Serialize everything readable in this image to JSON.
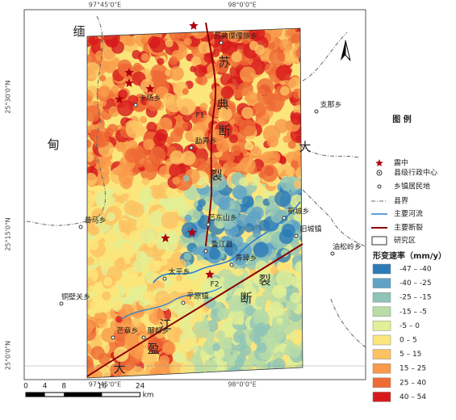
{
  "coordinates": {
    "top": [
      "97°45'0\"E",
      "98°0'0\"E"
    ],
    "bottom": [
      "97°45'0\"E",
      "98°0'0\"E"
    ],
    "left": [
      "25°30'0\"N",
      "25°15'0\"N",
      "25°0'0\"N"
    ]
  },
  "regions": [
    "缅",
    "甸",
    "苏",
    "典",
    "断",
    "裂",
    "大",
    "裂",
    "断",
    "江",
    "盈",
    "大"
  ],
  "faults": [
    "F1",
    "F2"
  ],
  "places": [
    "苏典傈僳族乡",
    "卡场乡",
    "支那乡",
    "勐弄乡",
    "昔马乡",
    "芒东山乡",
    "新城乡",
    "旧城镇",
    "盈江县",
    "油松岭乡",
    "弄璋乡",
    "太平乡",
    "平原镇",
    "铜壁关乡",
    "芒章乡",
    "那邦乡"
  ],
  "legend": {
    "title": "图 例",
    "items": [
      "震中",
      "县级行政中心",
      "乡镇居民地",
      "县界",
      "主要河流",
      "主要断裂",
      "研究区"
    ],
    "rate_title": "形变速率（mm/y）",
    "rate_items": [
      {
        "label": "-47 – -40",
        "color": "#2c7bb6"
      },
      {
        "label": "-40 – -25",
        "color": "#5fa3c8"
      },
      {
        "label": "-25 – -15",
        "color": "#8ec4b8"
      },
      {
        "label": "-15 – -5",
        "color": "#b8dca6"
      },
      {
        "label": "-5 – 0",
        "color": "#e2ef96"
      },
      {
        "label": "0 – 5",
        "color": "#fbe67c"
      },
      {
        "label": "5 – 15",
        "color": "#fdc261"
      },
      {
        "label": "15 – 25",
        "color": "#f99a4a"
      },
      {
        "label": "25 – 40",
        "color": "#ef6a35"
      },
      {
        "label": "40 – 54",
        "color": "#d7191c"
      }
    ]
  },
  "scale": {
    "ticks": [
      0,
      4,
      8,
      16,
      24
    ],
    "unit": "km"
  }
}
